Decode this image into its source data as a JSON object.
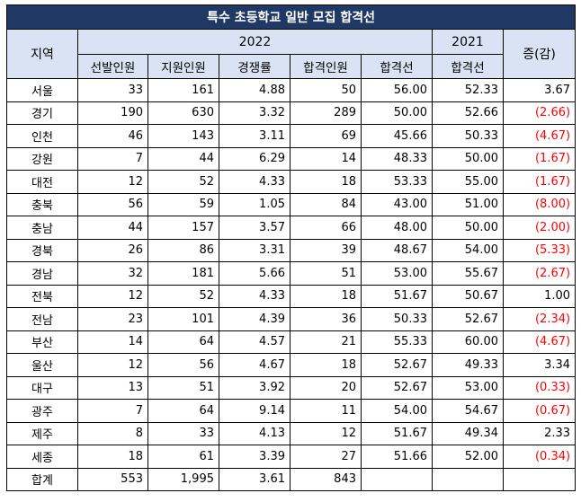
{
  "title": "특수 초등학교 일반 모집 합격선",
  "headers": {
    "region": "지역",
    "year2022": "2022",
    "year2021": "2021",
    "change": "증(감)",
    "sub": [
      "선발인원",
      "지원인원",
      "경쟁률",
      "합격인원",
      "합격선",
      "합격선"
    ]
  },
  "rows": [
    {
      "region": "서울",
      "selected": "33",
      "applied": "161",
      "ratio": "4.88",
      "passed": "50",
      "cutoff2022": "56.00",
      "cutoff2021": "52.33",
      "change": "3.67",
      "negative": false
    },
    {
      "region": "경기",
      "selected": "190",
      "applied": "630",
      "ratio": "3.32",
      "passed": "289",
      "cutoff2022": "50.00",
      "cutoff2021": "52.66",
      "change": "(2.66)",
      "negative": true
    },
    {
      "region": "인천",
      "selected": "46",
      "applied": "143",
      "ratio": "3.11",
      "passed": "69",
      "cutoff2022": "45.66",
      "cutoff2021": "50.33",
      "change": "(4.67)",
      "negative": true
    },
    {
      "region": "강원",
      "selected": "7",
      "applied": "44",
      "ratio": "6.29",
      "passed": "14",
      "cutoff2022": "48.33",
      "cutoff2021": "50.00",
      "change": "(1.67)",
      "negative": true
    },
    {
      "region": "대전",
      "selected": "12",
      "applied": "52",
      "ratio": "4.33",
      "passed": "18",
      "cutoff2022": "53.33",
      "cutoff2021": "55.00",
      "change": "(1.67)",
      "negative": true
    },
    {
      "region": "충북",
      "selected": "56",
      "applied": "59",
      "ratio": "1.05",
      "passed": "84",
      "cutoff2022": "43.00",
      "cutoff2021": "51.00",
      "change": "(8.00)",
      "negative": true
    },
    {
      "region": "충남",
      "selected": "44",
      "applied": "157",
      "ratio": "3.57",
      "passed": "66",
      "cutoff2022": "48.00",
      "cutoff2021": "50.00",
      "change": "(2.00)",
      "negative": true
    },
    {
      "region": "경북",
      "selected": "26",
      "applied": "86",
      "ratio": "3.31",
      "passed": "39",
      "cutoff2022": "48.67",
      "cutoff2021": "54.00",
      "change": "(5.33)",
      "negative": true
    },
    {
      "region": "경남",
      "selected": "32",
      "applied": "181",
      "ratio": "5.66",
      "passed": "51",
      "cutoff2022": "53.00",
      "cutoff2021": "55.67",
      "change": "(2.67)",
      "negative": true
    },
    {
      "region": "전북",
      "selected": "12",
      "applied": "52",
      "ratio": "4.33",
      "passed": "18",
      "cutoff2022": "51.67",
      "cutoff2021": "50.67",
      "change": "1.00",
      "negative": false
    },
    {
      "region": "전남",
      "selected": "23",
      "applied": "101",
      "ratio": "4.39",
      "passed": "36",
      "cutoff2022": "50.33",
      "cutoff2021": "52.67",
      "change": "(2.34)",
      "negative": true
    },
    {
      "region": "부산",
      "selected": "14",
      "applied": "64",
      "ratio": "4.57",
      "passed": "21",
      "cutoff2022": "55.33",
      "cutoff2021": "60.00",
      "change": "(4.67)",
      "negative": true
    },
    {
      "region": "울산",
      "selected": "12",
      "applied": "56",
      "ratio": "4.67",
      "passed": "18",
      "cutoff2022": "52.67",
      "cutoff2021": "49.33",
      "change": "3.34",
      "negative": false
    },
    {
      "region": "대구",
      "selected": "13",
      "applied": "51",
      "ratio": "3.92",
      "passed": "20",
      "cutoff2022": "52.67",
      "cutoff2021": "53.00",
      "change": "(0.33)",
      "negative": true
    },
    {
      "region": "광주",
      "selected": "7",
      "applied": "64",
      "ratio": "9.14",
      "passed": "11",
      "cutoff2022": "54.00",
      "cutoff2021": "54.67",
      "change": "(0.67)",
      "negative": true
    },
    {
      "region": "제주",
      "selected": "8",
      "applied": "33",
      "ratio": "4.13",
      "passed": "12",
      "cutoff2022": "51.67",
      "cutoff2021": "49.34",
      "change": "2.33",
      "negative": false
    },
    {
      "region": "세종",
      "selected": "18",
      "applied": "61",
      "ratio": "3.39",
      "passed": "27",
      "cutoff2022": "51.66",
      "cutoff2021": "52.00",
      "change": "(0.34)",
      "negative": true
    }
  ],
  "total": {
    "region": "합계",
    "selected": "553",
    "applied": "1,995",
    "ratio": "3.61",
    "passed": "843",
    "cutoff2022": "",
    "cutoff2021": "",
    "change": ""
  },
  "colors": {
    "title_bg": "#203864",
    "header_bg": "#dae3f3",
    "negative": "#ff0000"
  }
}
